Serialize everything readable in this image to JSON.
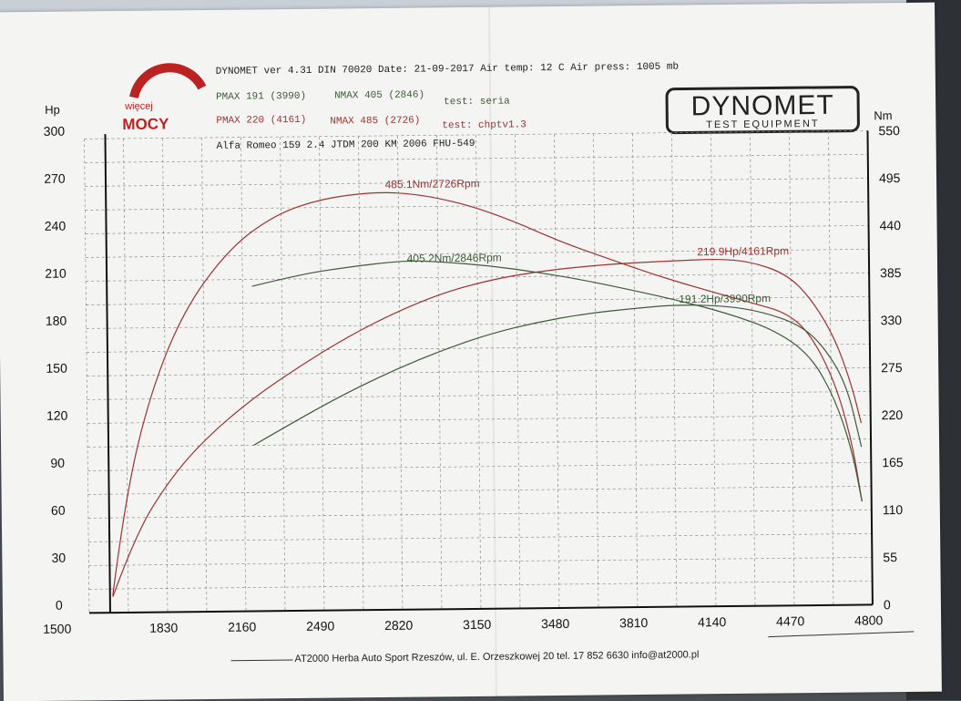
{
  "header": {
    "line1": "DYNOMET ver 4.31  DIN 70020  Date: 21-09-2017  Air temp: 12 C  Air press: 1005 mb",
    "pmax_a": "PMAX  191 (3990)",
    "nmax_a": "NMAX  405 (2846)",
    "test_a": "test: seria",
    "pmax_b": "PMAX  220 (4161)",
    "nmax_b": "NMAX  485 (2726)",
    "test_b": "test: chptv1.3",
    "vehicle": "Alfa Romeo 159 2.4 JTDM  200 KM  2006   FHU-549"
  },
  "logo_left": {
    "top": "więcej",
    "bottom": "MOCY"
  },
  "logo_right": {
    "main": "DYNOMET",
    "sub": "TEST EQUIPMENT"
  },
  "footer": "AT2000 Herba Auto Sport  Rzeszów, ul. E. Orzeszkowej 20  tel. 17 852 6630   info@at2000.pl",
  "colors": {
    "stock": "#3e5a38",
    "tuned": "#9c3333",
    "grid": "#8a8a8a",
    "axis": "#111111"
  },
  "chart_data": {
    "type": "line",
    "xlabel": "",
    "ylabel_left": "Hp",
    "ylabel_right": "Nm",
    "xlim": [
      1500,
      4800
    ],
    "ylim_left": [
      0,
      300
    ],
    "ylim_right": [
      0,
      550
    ],
    "x_ticks": [
      1500,
      1830,
      2160,
      2490,
      2820,
      3150,
      3480,
      3810,
      4140,
      4470,
      4800
    ],
    "y_left_ticks": [
      0,
      30,
      60,
      90,
      120,
      150,
      180,
      210,
      240,
      270,
      300
    ],
    "y_right_ticks": [
      0,
      55,
      110,
      165,
      220,
      275,
      330,
      385,
      440,
      495,
      550
    ],
    "grid": true,
    "series": [
      {
        "name": "",
        "axis": "right",
        "color": "#9c3333",
        "points": [
          [
            1600,
            20
          ],
          [
            1650,
            120
          ],
          [
            1750,
            240
          ],
          [
            1900,
            345
          ],
          [
            2100,
            420
          ],
          [
            2300,
            460
          ],
          [
            2500,
            478
          ],
          [
            2726,
            485
          ],
          [
            2900,
            482
          ],
          [
            3100,
            470
          ],
          [
            3300,
            450
          ],
          [
            3500,
            425
          ],
          [
            3700,
            405
          ],
          [
            3900,
            385
          ],
          [
            4100,
            368
          ],
          [
            4300,
            352
          ],
          [
            4450,
            340
          ],
          [
            4550,
            315
          ],
          [
            4650,
            260
          ],
          [
            4720,
            190
          ],
          [
            4760,
            120
          ]
        ]
      },
      {
        "name": "",
        "axis": "left",
        "color": "#9c3333",
        "points": [
          [
            1600,
            10
          ],
          [
            1700,
            50
          ],
          [
            1850,
            85
          ],
          [
            2000,
            110
          ],
          [
            2200,
            135
          ],
          [
            2400,
            155
          ],
          [
            2600,
            173
          ],
          [
            2800,
            188
          ],
          [
            3000,
            200
          ],
          [
            3200,
            208
          ],
          [
            3400,
            213
          ],
          [
            3600,
            216
          ],
          [
            3800,
            218
          ],
          [
            4000,
            219
          ],
          [
            4161,
            219.9
          ],
          [
            4300,
            218
          ],
          [
            4450,
            210
          ],
          [
            4550,
            195
          ],
          [
            4650,
            170
          ],
          [
            4720,
            140
          ],
          [
            4760,
            115
          ]
        ]
      },
      {
        "name": "",
        "axis": "right",
        "color": "#3e5a38",
        "points": [
          [
            2200,
            377
          ],
          [
            2400,
            390
          ],
          [
            2600,
            398
          ],
          [
            2846,
            405.2
          ],
          [
            3000,
            403
          ],
          [
            3200,
            398
          ],
          [
            3400,
            390
          ],
          [
            3600,
            380
          ],
          [
            3800,
            368
          ],
          [
            4000,
            355
          ],
          [
            4200,
            340
          ],
          [
            4400,
            320
          ],
          [
            4550,
            290
          ],
          [
            4650,
            240
          ],
          [
            4720,
            180
          ],
          [
            4760,
            120
          ]
        ]
      },
      {
        "name": "",
        "axis": "left",
        "color": "#3e5a38",
        "points": [
          [
            2200,
            105
          ],
          [
            2400,
            122
          ],
          [
            2600,
            138
          ],
          [
            2800,
            152
          ],
          [
            3000,
            164
          ],
          [
            3200,
            174
          ],
          [
            3400,
            181
          ],
          [
            3600,
            186
          ],
          [
            3800,
            189
          ],
          [
            3990,
            191.2
          ],
          [
            4200,
            190
          ],
          [
            4350,
            186
          ],
          [
            4500,
            178
          ],
          [
            4600,
            165
          ],
          [
            4700,
            140
          ],
          [
            4760,
            100
          ]
        ]
      }
    ],
    "annotations": [
      {
        "text": "485.1Nm/2726Rpm",
        "color": "#9c3333"
      },
      {
        "text": "405.2Nm/2846Rpm",
        "color": "#3e5a38"
      },
      {
        "text": "219.9Hp/4161Rpm",
        "color": "#9c3333"
      },
      {
        "text": "191.2Hp/3990Rpm",
        "color": "#3e5a38"
      }
    ]
  }
}
